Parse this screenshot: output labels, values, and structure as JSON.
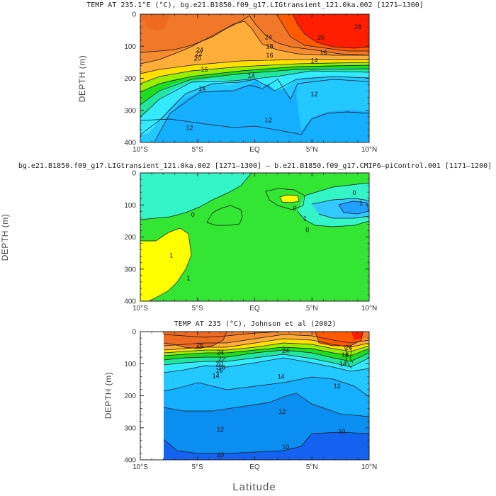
{
  "chart_data": [
    {
      "type": "heatmap",
      "title": "TEMP AT 235.1°E (°C), bg.e21.B1850.f09_g17.LIGtransient_121.0ka.002 [1271–1300]",
      "ylabel": "DEPTH (m)",
      "xlim": [
        -10,
        10
      ],
      "ylim": [
        400,
        0
      ],
      "x_ticks": [
        "10°S",
        "5°S",
        "EQ",
        "5°N",
        "10°N"
      ],
      "y_ticks": [
        "0",
        "100",
        "200",
        "300",
        "400"
      ],
      "contour_labels": [
        {
          "text": "28",
          "x": 9.0,
          "y": 40
        },
        {
          "text": "26",
          "x": 5.8,
          "y": 73
        },
        {
          "text": "24",
          "x": 1.2,
          "y": 72
        },
        {
          "text": "24",
          "x": -4.8,
          "y": 112
        },
        {
          "text": "22",
          "x": -4.9,
          "y": 124
        },
        {
          "text": "20",
          "x": -5.0,
          "y": 138
        },
        {
          "text": "18",
          "x": 1.3,
          "y": 100
        },
        {
          "text": "16",
          "x": 1.3,
          "y": 128
        },
        {
          "text": "16",
          "x": -4.4,
          "y": 172
        },
        {
          "text": "16",
          "x": 6.0,
          "y": 120
        },
        {
          "text": "14",
          "x": 5.2,
          "y": 145
        },
        {
          "text": "14",
          "x": -0.3,
          "y": 192
        },
        {
          "text": "14",
          "x": -4.6,
          "y": 232
        },
        {
          "text": "12",
          "x": 5.2,
          "y": 250
        },
        {
          "text": "12",
          "x": 1.2,
          "y": 330
        },
        {
          "text": "12",
          "x": -5.7,
          "y": 355
        }
      ]
    },
    {
      "type": "heatmap",
      "title": "bg.e21.B1850.f09_g17.LIGtransient_121.0ka.002 [1271–1300] – b.e21.B1850.f09_g17.CMIP6–piControl.001 [1171–1200]",
      "ylabel": "DEPTH (m)",
      "xlim": [
        -10,
        10
      ],
      "ylim": [
        400,
        0
      ],
      "x_ticks": [
        "10°S",
        "5°S",
        "EQ",
        "5°N",
        "10°N"
      ],
      "y_ticks": [
        "0",
        "100",
        "200",
        "300",
        "400"
      ],
      "contour_labels": [
        {
          "text": "0",
          "x": -5.4,
          "y": 130
        },
        {
          "text": "0",
          "x": 3.5,
          "y": 110
        },
        {
          "text": "0",
          "x": 4.6,
          "y": 178
        },
        {
          "text": "0",
          "x": 8.7,
          "y": 62
        },
        {
          "text": "1",
          "x": 9.3,
          "y": 95
        },
        {
          "text": "1",
          "x": -7.3,
          "y": 258
        },
        {
          "text": "1",
          "x": -5.8,
          "y": 328
        },
        {
          "text": "1",
          "x": 4.4,
          "y": 143
        }
      ]
    },
    {
      "type": "heatmap",
      "title": "TEMP AT 235 (°C), Johnson et al (2002)",
      "ylabel": "DEPTH (m)",
      "xlabel": "Latitude",
      "xlim": [
        -10,
        10
      ],
      "ylim": [
        400,
        0
      ],
      "x_ticks": [
        "10°S",
        "5°S",
        "EQ",
        "5°N",
        "10°N"
      ],
      "y_ticks": [
        "0",
        "100",
        "200",
        "300",
        "400"
      ],
      "data_xrange": [
        -8,
        10
      ],
      "contour_labels": [
        {
          "text": "26",
          "x": -4.8,
          "y": 42
        },
        {
          "text": "24",
          "x": -3.0,
          "y": 65
        },
        {
          "text": "24",
          "x": 2.7,
          "y": 60
        },
        {
          "text": "22",
          "x": -2.9,
          "y": 86
        },
        {
          "text": "20",
          "x": -3.1,
          "y": 100
        },
        {
          "text": "18",
          "x": -2.9,
          "y": 112
        },
        {
          "text": "16",
          "x": -3.1,
          "y": 122
        },
        {
          "text": "14",
          "x": -3.4,
          "y": 138
        },
        {
          "text": "14",
          "x": 2.3,
          "y": 140
        },
        {
          "text": "24",
          "x": 8.2,
          "y": 50
        },
        {
          "text": "18",
          "x": 7.9,
          "y": 73
        },
        {
          "text": "14",
          "x": 7.7,
          "y": 100
        },
        {
          "text": "12",
          "x": 7.2,
          "y": 170
        },
        {
          "text": "12",
          "x": 2.4,
          "y": 250
        },
        {
          "text": "12",
          "x": -3.0,
          "y": 305
        },
        {
          "text": "10",
          "x": 7.6,
          "y": 310
        },
        {
          "text": "10",
          "x": 2.7,
          "y": 360
        },
        {
          "text": "10",
          "x": -3.0,
          "y": 385
        }
      ]
    }
  ],
  "figure": {
    "xlabel": "Latitude",
    "colors": {
      "t_above_28": "#ff1e00",
      "t_26_28": "#ff5a00",
      "t_24_26": "#f07828",
      "t_22_24": "#f58c30",
      "t_20_22": "#ffae3a",
      "t_18_20": "#ffe000",
      "t_16_18": "#98ee00",
      "t_15_16": "#20dc20",
      "t_14_15": "#22e6a0",
      "t_13_14": "#33eaff",
      "t_12_13": "#22c8ff",
      "t_11_12": "#14b0ff",
      "t_10_11": "#0a8ef0",
      "t_below_10": "#1463f0",
      "d_zero_band": "#33f5c8",
      "d_positive": "#33e633",
      "d_strong_positive": "#ffff00",
      "d_negative": "#33c8ff",
      "d_strong_negative": "#20a0ff"
    }
  }
}
